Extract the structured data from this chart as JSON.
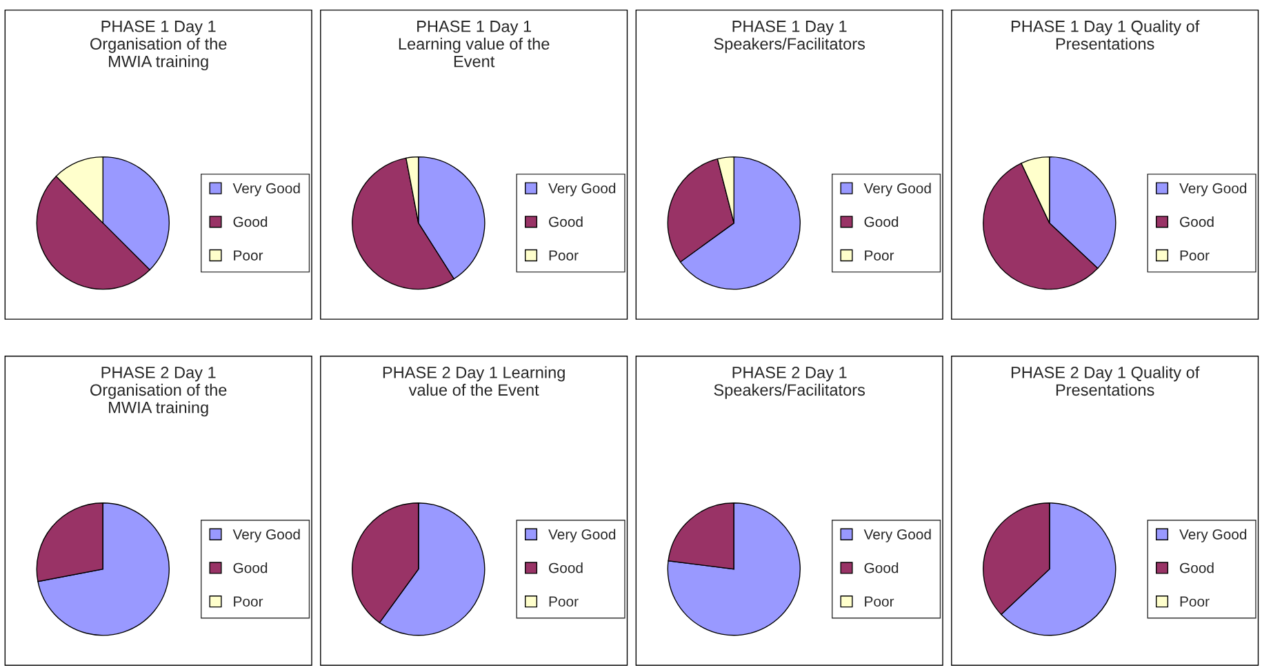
{
  "chart_data": [
    {
      "type": "pie",
      "title": "PHASE 1 Day 1\nOrganisation of the\nMWIA training",
      "categories": [
        "Very Good",
        "Good",
        "Poor"
      ],
      "values": [
        37.5,
        50,
        12.5
      ],
      "colors": [
        "#9999ff",
        "#993366",
        "#ffffcc"
      ],
      "legend": "right"
    },
    {
      "type": "pie",
      "title": "PHASE 1 Day 1\nLearning value of the\nEvent",
      "categories": [
        "Very Good",
        "Good",
        "Poor"
      ],
      "values": [
        41,
        56,
        3
      ],
      "colors": [
        "#9999ff",
        "#993366",
        "#ffffcc"
      ],
      "legend": "right"
    },
    {
      "type": "pie",
      "title": "PHASE 1 Day 1\nSpeakers/Facilitators",
      "categories": [
        "Very Good",
        "Good",
        "Poor"
      ],
      "values": [
        65,
        31,
        4
      ],
      "colors": [
        "#9999ff",
        "#993366",
        "#ffffcc"
      ],
      "legend": "right"
    },
    {
      "type": "pie",
      "title": "PHASE 1 Day 1 Quality of\nPresentations",
      "categories": [
        "Very Good",
        "Good",
        "Poor"
      ],
      "values": [
        37,
        56,
        7
      ],
      "colors": [
        "#9999ff",
        "#993366",
        "#ffffcc"
      ],
      "legend": "right"
    },
    {
      "type": "pie",
      "title": "PHASE 2 Day 1\nOrganisation of the\nMWIA training",
      "categories": [
        "Very Good",
        "Good",
        "Poor"
      ],
      "values": [
        72,
        28,
        0
      ],
      "colors": [
        "#9999ff",
        "#993366",
        "#ffffcc"
      ],
      "legend": "right"
    },
    {
      "type": "pie",
      "title": "PHASE 2 Day 1 Learning\nvalue of the Event",
      "categories": [
        "Very Good",
        "Good",
        "Poor"
      ],
      "values": [
        60,
        40,
        0
      ],
      "colors": [
        "#9999ff",
        "#993366",
        "#ffffcc"
      ],
      "legend": "right"
    },
    {
      "type": "pie",
      "title": "PHASE 2 Day 1\nSpeakers/Facilitators",
      "categories": [
        "Very Good",
        "Good",
        "Poor"
      ],
      "values": [
        77,
        23,
        0
      ],
      "colors": [
        "#9999ff",
        "#993366",
        "#ffffcc"
      ],
      "legend": "right"
    },
    {
      "type": "pie",
      "title": "PHASE 2 Day 1 Quality of\nPresentations",
      "categories": [
        "Very Good",
        "Good",
        "Poor"
      ],
      "values": [
        63,
        37,
        0
      ],
      "colors": [
        "#9999ff",
        "#993366",
        "#ffffcc"
      ],
      "legend": "right"
    }
  ]
}
